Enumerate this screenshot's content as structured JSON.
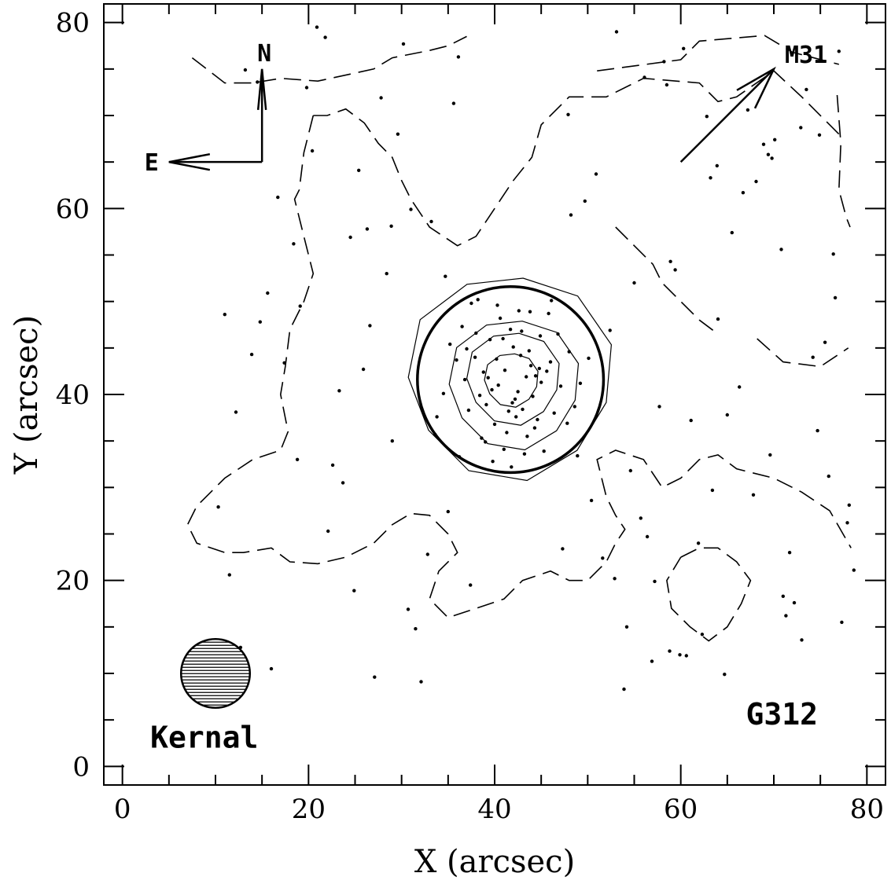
{
  "chart_data": {
    "type": "scatter",
    "title": "",
    "xlabel": "X (arcsec)",
    "ylabel": "Y (arcsec)",
    "xlim": [
      -2,
      82
    ],
    "ylim": [
      -2,
      82
    ],
    "x_ticks": [
      0,
      20,
      40,
      60,
      80
    ],
    "y_ticks": [
      0,
      20,
      40,
      60,
      80
    ],
    "x_tick_labels": [
      "0",
      "20",
      "40",
      "60",
      "80"
    ],
    "y_tick_labels": [
      "0",
      "20",
      "40",
      "60",
      "80"
    ],
    "grid": false,
    "legend": "none",
    "colors": {
      "points": "#000000",
      "lines": "#000000",
      "background": "#ffffff"
    },
    "annotations": {
      "object_label": "G312",
      "kernel_label": "Kernal",
      "m31_label": "M31",
      "north_label": "N",
      "east_label": "E"
    },
    "cluster": {
      "center": [
        41.7,
        41.6
      ],
      "radius": 10.0
    },
    "compass": {
      "origin": [
        15,
        65
      ],
      "north_tip": [
        15,
        75
      ],
      "east_tip": [
        5,
        65
      ]
    },
    "m31_arrow": {
      "from": [
        60,
        65
      ],
      "to": [
        70,
        75
      ]
    },
    "kernel": {
      "center": [
        10,
        10
      ],
      "radius": 3.7
    },
    "contours_solid": [
      {
        "center": [
          41.7,
          42.0
        ],
        "radius": 11.0
      },
      {
        "center": [
          42.1,
          41.2
        ],
        "radius": 7.0
      },
      {
        "center": [
          42.0,
          41.8
        ],
        "radius": 5.0
      },
      {
        "center": [
          41.8,
          41.6
        ],
        "radius": 2.9
      }
    ],
    "contours_dashed": [
      [
        [
          7.5,
          76.2
        ],
        [
          11,
          73.5
        ],
        [
          14,
          73.5
        ],
        [
          17,
          74
        ],
        [
          21,
          73.7
        ],
        [
          27,
          75
        ],
        [
          29,
          76.2
        ],
        [
          33,
          77
        ],
        [
          35,
          77.5
        ],
        [
          37,
          78.5
        ]
      ],
      [
        [
          51,
          74.8
        ],
        [
          60,
          76
        ],
        [
          62,
          78
        ],
        [
          69,
          78.6
        ],
        [
          72,
          76.8
        ],
        [
          77,
          75.5
        ]
      ],
      [
        [
          76.8,
          72.2
        ],
        [
          77.2,
          67
        ],
        [
          77,
          62
        ],
        [
          77.8,
          59
        ],
        [
          78.2,
          58
        ]
      ],
      [
        [
          20.5,
          70
        ],
        [
          22,
          70
        ],
        [
          24,
          70.7
        ],
        [
          26,
          69.2
        ],
        [
          27.5,
          67
        ],
        [
          29,
          65.5
        ],
        [
          30,
          63
        ],
        [
          31,
          61
        ],
        [
          33,
          58
        ],
        [
          36,
          56
        ],
        [
          38,
          57
        ],
        [
          40,
          60
        ],
        [
          42,
          63
        ],
        [
          44,
          65.5
        ],
        [
          45,
          69
        ],
        [
          48,
          72
        ],
        [
          52,
          72
        ],
        [
          56,
          74
        ],
        [
          62,
          73.5
        ],
        [
          64,
          71.5
        ],
        [
          66,
          72
        ],
        [
          70,
          74.8
        ],
        [
          73,
          72
        ],
        [
          77,
          68
        ]
      ],
      [
        [
          20.5,
          70
        ],
        [
          19.5,
          66
        ],
        [
          19,
          62
        ],
        [
          18.5,
          61
        ],
        [
          19.5,
          57
        ],
        [
          20.5,
          53
        ],
        [
          19.5,
          50
        ],
        [
          18,
          47
        ],
        [
          17.5,
          43
        ],
        [
          17,
          40
        ],
        [
          17.8,
          36
        ],
        [
          17,
          34
        ],
        [
          14,
          33
        ],
        [
          11,
          31
        ],
        [
          8,
          28
        ],
        [
          7,
          26
        ],
        [
          8,
          24
        ],
        [
          11,
          23
        ],
        [
          13,
          23
        ],
        [
          16,
          23.5
        ],
        [
          18,
          22
        ],
        [
          21,
          21.8
        ],
        [
          24,
          22.5
        ],
        [
          27,
          24
        ],
        [
          29,
          26
        ],
        [
          31,
          27.2
        ],
        [
          33,
          27
        ],
        [
          35,
          25
        ],
        [
          36,
          23
        ],
        [
          34,
          21
        ],
        [
          33,
          18
        ],
        [
          35,
          16
        ],
        [
          38,
          17
        ],
        [
          41,
          18
        ],
        [
          43,
          20
        ],
        [
          46,
          21
        ],
        [
          48,
          20
        ],
        [
          50,
          20
        ],
        [
          52,
          22
        ],
        [
          53,
          24
        ],
        [
          54,
          25.5
        ],
        [
          53,
          27
        ],
        [
          52,
          29
        ],
        [
          51,
          33
        ],
        [
          53,
          34
        ],
        [
          56,
          33
        ],
        [
          58,
          30
        ],
        [
          60,
          31
        ],
        [
          62,
          33
        ],
        [
          64,
          33.5
        ],
        [
          66,
          32
        ],
        [
          70,
          31
        ],
        [
          73,
          29.5
        ],
        [
          76,
          27.5
        ],
        [
          78.3,
          23.5
        ]
      ],
      [
        [
          53,
          58
        ],
        [
          55,
          56
        ],
        [
          57,
          54
        ],
        [
          58,
          52
        ],
        [
          60,
          50
        ],
        [
          62,
          48
        ],
        [
          64,
          46.5
        ]
      ],
      [
        [
          68.2,
          46
        ],
        [
          71,
          43.5
        ],
        [
          75,
          43
        ],
        [
          78,
          45
        ]
      ],
      [
        [
          60,
          22.5
        ],
        [
          62,
          23.5
        ],
        [
          64,
          23.5
        ],
        [
          66,
          22
        ],
        [
          67.5,
          20
        ],
        [
          66.5,
          17.5
        ],
        [
          65,
          15
        ],
        [
          63,
          13.5
        ],
        [
          61,
          15
        ],
        [
          59,
          17
        ],
        [
          58.5,
          20
        ],
        [
          60,
          22.5
        ]
      ]
    ],
    "points_x": [
      41.1,
      42.5,
      43.9,
      40.4,
      42.8,
      41.9,
      40.2,
      43.4,
      39.7,
      44.1,
      42.0,
      38.8,
      44.8,
      41.5,
      40.9,
      43.7,
      39.1,
      45.0,
      42.3,
      37.9,
      38.4,
      46.0,
      41.7,
      43.0,
      39.5,
      44.6,
      40.0,
      42.9,
      36.8,
      47.1,
      41.3,
      44.9,
      38.0,
      43.5,
      40.6,
      46.4,
      37.2,
      42.6,
      35.9,
      48.0,
      39.0,
      45.8,
      41.0,
      44.3,
      36.5,
      47.8,
      40.3,
      43.2,
      38.6,
      46.8,
      34.5,
      49.2,
      37.5,
      45.3,
      39.8,
      48.6,
      35.2,
      43.8,
      36.2,
      50.1,
      33.8,
      48.9,
      38.2,
      46.1,
      41.8,
      39.3,
      44.4,
      37.0,
      45.6,
      42.2,
      16.7,
      56.1,
      71.0,
      63.4,
      27.1,
      55.0,
      69.8,
      32.8,
      60.3,
      13.9,
      74.7,
      24.5,
      58.8,
      67.2,
      35.0,
      29.6,
      77.3,
      18.8,
      53.1,
      64.0,
      11.5,
      48.2,
      73.5,
      26.6,
      61.9,
      20.4,
      57.7,
      70.8,
      31.5,
      50.9,
      14.5,
      66.3,
      77.9,
      23.7,
      59.4,
      36.1,
      72.2,
      19.1,
      54.6,
      62.8,
      28.9,
      75.5,
      12.7,
      47.3,
      68.1,
      33.6,
      56.9,
      21.8,
      78.6,
      25.9,
      65.5,
      16.0,
      52.4,
      70.1,
      30.7,
      58.2,
      10.3,
      76.4,
      22.6,
      63.9,
      37.4,
      49.7,
      73.0,
      27.8,
      61.1,
      15.6,
      55.7,
      68.9,
      32.1,
      74.2,
      19.8,
      50.4,
      66.7,
      24.9,
      58.9,
      13.2,
      71.7,
      29.0,
      53.9,
      77.0,
      17.4,
      62.3,
      34.7,
      69.4,
      22.1,
      47.9,
      75.9,
      26.3,
      60.6,
      11.0,
      57.2,
      72.9,
      31.0,
      54.2,
      65.0,
      20.9,
      78.1,
      28.4,
      51.6,
      63.2,
      14.8,
      69.6,
      35.6,
      56.4,
      74.9,
      23.3,
      59.9,
      18.4,
      67.8,
      30.2,
      52.9,
      76.6,
      25.4,
      64.7,
      12.2,
      58.5,
      71.3,
      33.2,
      55.3,
      62.0,
      16.5
    ],
    "points_y": [
      42.6,
      40.3,
      43.1,
      41.0,
      44.2,
      39.1,
      43.8,
      41.9,
      40.5,
      39.8,
      45.1,
      42.4,
      42.8,
      38.2,
      46.0,
      44.7,
      38.9,
      41.3,
      37.6,
      44.0,
      39.9,
      43.5,
      47.0,
      38.4,
      45.9,
      37.3,
      36.8,
      46.8,
      41.6,
      40.9,
      35.9,
      46.3,
      46.6,
      35.5,
      48.2,
      38.0,
      38.3,
      49.0,
      43.7,
      44.6,
      34.9,
      48.7,
      34.1,
      36.4,
      47.3,
      36.9,
      49.6,
      33.6,
      35.3,
      46.5,
      40.1,
      41.2,
      49.8,
      33.9,
      32.8,
      38.7,
      45.4,
      48.9,
      33.3,
      43.9,
      37.6,
      33.4,
      50.2,
      50.1,
      32.2,
      41.8,
      42.0,
      44.9,
      42.5,
      39.5,
      61.2,
      74.1,
      18.3,
      29.7,
      9.6,
      52.0,
      65.4,
      22.8,
      77.2,
      44.3,
      36.1,
      56.9,
      12.4,
      70.6,
      27.4,
      68.0,
      15.5,
      33.0,
      79.0,
      48.1,
      20.6,
      59.3,
      72.8,
      47.4,
      24.0,
      66.2,
      38.7,
      55.6,
      14.8,
      63.7,
      73.6,
      40.8,
      26.2,
      30.5,
      53.4,
      76.3,
      17.6,
      49.5,
      31.8,
      69.9,
      58.1,
      45.6,
      12.8,
      23.4,
      62.9,
      35.7,
      11.3,
      78.4,
      21.1,
      42.7,
      57.4,
      10.5,
      46.9,
      67.4,
      16.9,
      75.8,
      27.9,
      55.1,
      32.4,
      64.6,
      19.5,
      60.8,
      13.6,
      71.9,
      37.2,
      50.9,
      26.7,
      66.9,
      9.1,
      44.0,
      73.0,
      28.6,
      61.7,
      18.9,
      54.3,
      74.9,
      23.0,
      35.0,
      8.3,
      76.9,
      43.4,
      14.2,
      52.7,
      65.8,
      25.3,
      70.1,
      31.2,
      57.8,
      11.9,
      48.6,
      19.9,
      68.7,
      59.9,
      15.0,
      37.8,
      79.5,
      28.1,
      53.0,
      22.4,
      63.3,
      47.8,
      33.5,
      71.3,
      24.7,
      67.9,
      40.4,
      12.0,
      56.2,
      29.2,
      77.7,
      20.2,
      50.4,
      64.1,
      9.9,
      38.1,
      73.3,
      16.2,
      58.6
    ]
  }
}
